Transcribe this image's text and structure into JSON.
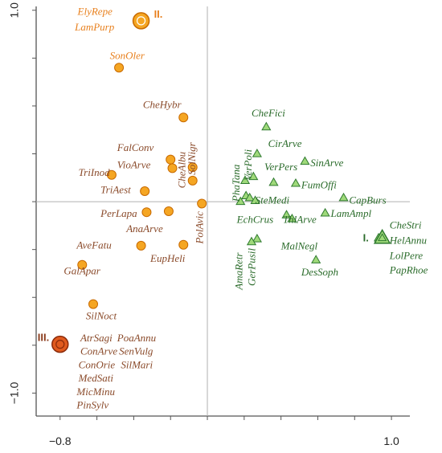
{
  "chart_data": {
    "type": "scatter",
    "title": "",
    "xlabel": "",
    "ylabel": "",
    "xlim": [
      -0.93,
      1.1
    ],
    "ylim": [
      -1.12,
      1.02
    ],
    "x_ticks": [
      {
        "value": -0.8,
        "label": "−0.8"
      },
      {
        "value": 1.0,
        "label": "1.0"
      }
    ],
    "y_ticks": [
      {
        "value": 1.0,
        "label": "1.0"
      },
      {
        "value": -1.0,
        "label": "−1.0"
      }
    ],
    "colors": {
      "orange_fill": "#f5a623",
      "orange_stroke": "#c86a00",
      "orange_text": "#e8801e",
      "brown_text": "#8a4a2a",
      "red_fill": "#e05a1e",
      "green_fill": "#9fd97a",
      "green_stroke": "#2f7a2f",
      "green_text": "#2a6b2a",
      "axis": "#555555",
      "zero_line": "#b0b0b0"
    },
    "series": [
      {
        "marker": "circle",
        "points": [
          {
            "x": -0.36,
            "y": 0.945
          },
          {
            "x": -0.48,
            "y": 0.7
          },
          {
            "x": -0.13,
            "y": 0.44
          },
          {
            "x": -0.2,
            "y": 0.22
          },
          {
            "x": -0.19,
            "y": 0.175
          },
          {
            "x": -0.52,
            "y": 0.14
          },
          {
            "x": -0.08,
            "y": 0.18
          },
          {
            "x": -0.08,
            "y": 0.11
          },
          {
            "x": -0.34,
            "y": 0.055
          },
          {
            "x": -0.03,
            "y": -0.01
          },
          {
            "x": -0.33,
            "y": -0.055
          },
          {
            "x": -0.21,
            "y": -0.05
          },
          {
            "x": -0.36,
            "y": -0.23
          },
          {
            "x": -0.13,
            "y": -0.225
          },
          {
            "x": -0.68,
            "y": -0.33
          },
          {
            "x": -0.62,
            "y": -0.535
          },
          {
            "x": -0.8,
            "y": -0.745
          }
        ],
        "labels": [
          {
            "text": "ElyRepe",
            "x": -0.705,
            "y": 0.975,
            "color": "orange"
          },
          {
            "text": "LamPurp",
            "x": -0.72,
            "y": 0.895,
            "color": "orange"
          },
          {
            "text": "SonOler",
            "x": -0.53,
            "y": 0.745,
            "color": "orange"
          },
          {
            "text": "CheHybr",
            "x": -0.35,
            "y": 0.49,
            "color": "brown"
          },
          {
            "text": "FalConv",
            "x": -0.49,
            "y": 0.265,
            "color": "brown"
          },
          {
            "text": "VioArve",
            "x": -0.49,
            "y": 0.175,
            "color": "brown"
          },
          {
            "text": "TriInod",
            "x": -0.7,
            "y": 0.135,
            "color": "brown"
          },
          {
            "text": "TriAest",
            "x": -0.58,
            "y": 0.045,
            "color": "brown"
          },
          {
            "text": "PerLapa",
            "x": -0.58,
            "y": -0.08,
            "color": "brown"
          },
          {
            "text": "AnaArve",
            "x": -0.44,
            "y": -0.16,
            "color": "brown"
          },
          {
            "text": "AveFatu",
            "x": -0.71,
            "y": -0.245,
            "color": "brown"
          },
          {
            "text": "EupHeli",
            "x": -0.31,
            "y": -0.315,
            "color": "brown"
          },
          {
            "text": "GalApar",
            "x": -0.78,
            "y": -0.38,
            "color": "brown"
          },
          {
            "text": "SilNoct",
            "x": -0.66,
            "y": -0.615,
            "color": "brown"
          },
          {
            "text": "AtrSagi",
            "x": -0.69,
            "y": -0.73,
            "color": "brown"
          },
          {
            "text": "ConArve",
            "x": -0.69,
            "y": -0.8,
            "color": "brown"
          },
          {
            "text": "ConOrie",
            "x": -0.7,
            "y": -0.87,
            "color": "brown"
          },
          {
            "text": "MedSati",
            "x": -0.7,
            "y": -0.94,
            "color": "brown"
          },
          {
            "text": "MicMinu",
            "x": -0.71,
            "y": -1.01,
            "color": "brown"
          },
          {
            "text": "PinSylv",
            "x": -0.71,
            "y": -1.08,
            "color": "brown"
          },
          {
            "text": "PoaAnnu",
            "x": -0.49,
            "y": -0.73,
            "color": "brown"
          },
          {
            "text": "SenVulg",
            "x": -0.48,
            "y": -0.8,
            "color": "brown"
          },
          {
            "text": "SilMari",
            "x": -0.47,
            "y": -0.87,
            "color": "brown"
          },
          {
            "text": "CheAlbu",
            "x": -0.12,
            "y": 0.07,
            "color": "brown",
            "rotate": true
          },
          {
            "text": "SolNigr",
            "x": -0.065,
            "y": 0.14,
            "color": "brown",
            "rotate": true
          },
          {
            "text": "PolAvic",
            "x": -0.025,
            "y": -0.22,
            "color": "brown",
            "rotate": true
          }
        ]
      },
      {
        "marker": "triangle",
        "points": [
          {
            "x": 0.32,
            "y": 0.39
          },
          {
            "x": 0.27,
            "y": 0.25
          },
          {
            "x": 0.53,
            "y": 0.21
          },
          {
            "x": 0.25,
            "y": 0.13
          },
          {
            "x": 0.205,
            "y": 0.11
          },
          {
            "x": 0.48,
            "y": 0.095
          },
          {
            "x": 0.21,
            "y": 0.03
          },
          {
            "x": 0.36,
            "y": 0.1
          },
          {
            "x": 0.23,
            "y": 0.02
          },
          {
            "x": 0.74,
            "y": 0.02
          },
          {
            "x": 0.26,
            "y": 0.005
          },
          {
            "x": 0.18,
            "y": 0.0
          },
          {
            "x": 0.46,
            "y": -0.09
          },
          {
            "x": 0.64,
            "y": -0.06
          },
          {
            "x": 0.43,
            "y": -0.07
          },
          {
            "x": 0.27,
            "y": -0.195
          },
          {
            "x": 0.24,
            "y": -0.21
          },
          {
            "x": 0.93,
            "y": -0.19
          },
          {
            "x": 0.59,
            "y": -0.305
          }
        ],
        "labels": [
          {
            "text": "CheFici",
            "x": 0.24,
            "y": 0.445,
            "color": "green"
          },
          {
            "text": "CirArve",
            "x": 0.33,
            "y": 0.285,
            "color": "green"
          },
          {
            "text": "SinArve",
            "x": 0.56,
            "y": 0.185,
            "color": "green"
          },
          {
            "text": "VerPers",
            "x": 0.31,
            "y": 0.165,
            "color": "green"
          },
          {
            "text": "FumOffi",
            "x": 0.51,
            "y": 0.07,
            "color": "green"
          },
          {
            "text": "SteMedi",
            "x": 0.26,
            "y": -0.01,
            "color": "green"
          },
          {
            "text": "CapBurs",
            "x": 0.77,
            "y": -0.01,
            "color": "green"
          },
          {
            "text": "EchCrus",
            "x": 0.16,
            "y": -0.11,
            "color": "green"
          },
          {
            "text": "ThlArve",
            "x": 0.41,
            "y": -0.11,
            "color": "green"
          },
          {
            "text": "LamAmpl",
            "x": 0.67,
            "y": -0.08,
            "color": "green"
          },
          {
            "text": "MalNegl",
            "x": 0.4,
            "y": -0.25,
            "color": "green"
          },
          {
            "text": "DesSoph",
            "x": 0.51,
            "y": -0.385,
            "color": "green"
          },
          {
            "text": "CheStri",
            "x": 0.99,
            "y": -0.14,
            "color": "green"
          },
          {
            "text": "HelAnnu",
            "x": 0.99,
            "y": -0.22,
            "color": "green"
          },
          {
            "text": "LolPere",
            "x": 0.99,
            "y": -0.3,
            "color": "green"
          },
          {
            "text": "PapRhoe",
            "x": 0.99,
            "y": -0.375,
            "color": "green"
          },
          {
            "text": "PhaTana",
            "x": 0.175,
            "y": 0.0,
            "color": "green",
            "rotate": true
          },
          {
            "text": "VerPoli",
            "x": 0.24,
            "y": 0.11,
            "color": "green",
            "rotate": true
          },
          {
            "text": "AmaRetr",
            "x": 0.19,
            "y": -0.46,
            "color": "green",
            "rotate": true
          },
          {
            "text": "GerPusil",
            "x": 0.26,
            "y": -0.44,
            "color": "green",
            "rotate": true
          }
        ]
      }
    ],
    "groups": [
      {
        "label": "I.",
        "x": 0.95,
        "y": -0.19,
        "marker": "triangle"
      },
      {
        "label": "II.",
        "x": -0.36,
        "y": 0.945,
        "marker": "circle"
      },
      {
        "label": "III.",
        "x": -0.8,
        "y": -0.745,
        "marker": "circle"
      }
    ]
  }
}
